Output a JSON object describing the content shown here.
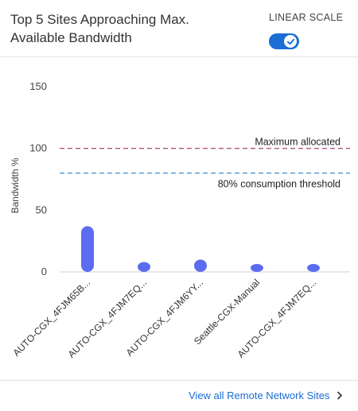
{
  "header": {
    "title": "Top 5 Sites Approaching Max. Available Bandwidth",
    "scale_label": "LINEAR SCALE",
    "scale_toggle_on": true
  },
  "colors": {
    "accent": "#1a6ed4",
    "bar": "#5c6cf0",
    "max_line": "#a0306e",
    "threshold_line": "#3d8fd1"
  },
  "chart_data": {
    "type": "bar",
    "title": "",
    "xlabel": "",
    "ylabel": "Bandwidth %",
    "ylim": [
      0,
      150
    ],
    "yticks": [
      0,
      50,
      100,
      150
    ],
    "grid": false,
    "categories": [
      "AUTO-CGX_4FJM65B...",
      "AUTO-CGX_4FJM7EQ...",
      "AUTO-CGX_4FJM6YY...",
      "Seattle-CGX-Manual",
      "AUTO-CGX_4FJM7EQ..."
    ],
    "values": [
      37,
      8,
      10,
      5,
      5
    ],
    "reference_lines": [
      {
        "label": "Maximum allocated",
        "value": 100
      },
      {
        "label": "80% consumption threshold",
        "value": 80
      }
    ]
  },
  "footer": {
    "link_label": "View all Remote Network Sites"
  }
}
